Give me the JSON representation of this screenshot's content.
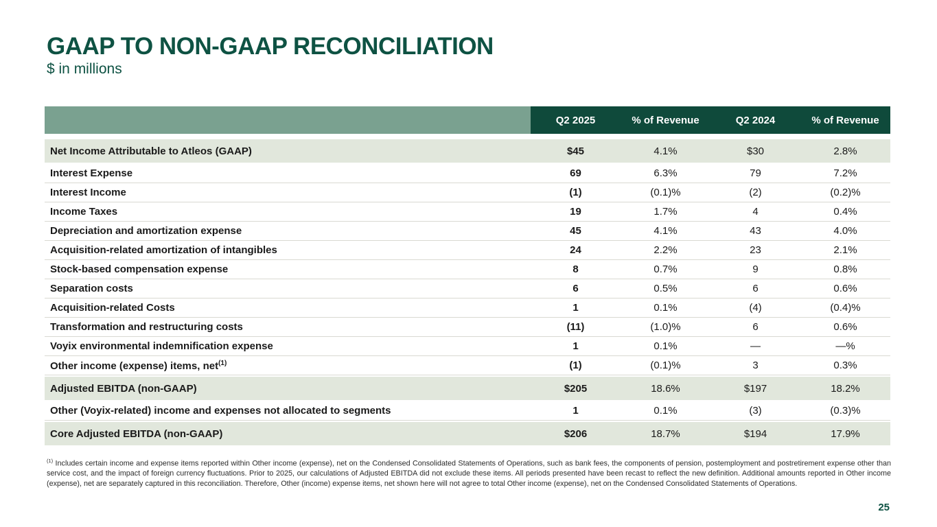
{
  "slide": {
    "title": "GAAP TO NON-GAAP RECONCILIATION",
    "subtitle": "$ in millions",
    "page_number": "25"
  },
  "colors": {
    "title_green": "#0E5243",
    "header_dark_green": "#0F4A3B",
    "header_sage_green": "#7AA190",
    "row_highlight_sage": "#E1E7DC",
    "body_text": "#1A1A1A"
  },
  "table": {
    "columns": [
      "Q2 2025",
      "% of Revenue",
      "Q2 2024",
      "% of Revenue"
    ],
    "rows": [
      {
        "label": "Net Income Attributable to Atleos (GAAP)",
        "values": [
          "$45",
          "4.1%",
          "$30",
          "2.8%"
        ],
        "highlight": true
      },
      {
        "label": "Interest Expense",
        "values": [
          "69",
          "6.3%",
          "79",
          "7.2%"
        ],
        "highlight": false
      },
      {
        "label": "Interest Income",
        "values": [
          "(1)",
          "(0.1)%",
          "(2)",
          "(0.2)%"
        ],
        "highlight": false
      },
      {
        "label": "Income Taxes",
        "values": [
          "19",
          "1.7%",
          "4",
          "0.4%"
        ],
        "highlight": false
      },
      {
        "label": "Depreciation and amortization expense",
        "values": [
          "45",
          "4.1%",
          "43",
          "4.0%"
        ],
        "highlight": false
      },
      {
        "label": "Acquisition-related amortization of intangibles",
        "values": [
          "24",
          "2.2%",
          "23",
          "2.1%"
        ],
        "highlight": false
      },
      {
        "label": "Stock-based compensation expense",
        "values": [
          "8",
          "0.7%",
          "9",
          "0.8%"
        ],
        "highlight": false
      },
      {
        "label": "Separation costs",
        "values": [
          "6",
          "0.5%",
          "6",
          "0.6%"
        ],
        "highlight": false
      },
      {
        "label": "Acquisition-related Costs",
        "values": [
          "1",
          "0.1%",
          "(4)",
          "(0.4)%"
        ],
        "highlight": false
      },
      {
        "label": "Transformation and restructuring costs",
        "values": [
          "(11)",
          "(1.0)%",
          "6",
          "0.6%"
        ],
        "highlight": false
      },
      {
        "label": "Voyix environmental indemnification expense",
        "values": [
          "1",
          "0.1%",
          "—",
          "—%"
        ],
        "highlight": false
      },
      {
        "label": "Other income (expense) items, net",
        "label_superscript": "(1)",
        "values": [
          "(1)",
          "(0.1)%",
          "3",
          "0.3%"
        ],
        "highlight": false
      },
      {
        "label": "Adjusted EBITDA (non-GAAP)",
        "values": [
          "$205",
          "18.6%",
          "$197",
          "18.2%"
        ],
        "highlight": true
      },
      {
        "label": "Other (Voyix-related) income and expenses not allocated to segments",
        "values": [
          "1",
          "0.1%",
          "(3)",
          "(0.3)%"
        ],
        "highlight": false
      },
      {
        "label": "Core Adjusted EBITDA (non-GAAP)",
        "values": [
          "$206",
          "18.7%",
          "$194",
          "17.9%"
        ],
        "highlight": true
      }
    ]
  },
  "footnote": {
    "marker": "(1)",
    "text": "Includes certain income and expense items reported within Other income (expense), net on the Condensed Consolidated Statements of Operations, such as bank fees, the components of pension, postemployment and postretirement expense other than service cost, and the impact of foreign currency fluctuations. Prior to 2025, our calculations of Adjusted EBITDA did not exclude these items. All periods presented have been recast to reflect the new definition. Additional amounts reported in Other income (expense), net are separately captured in this reconciliation. Therefore, Other (income) expense items, net shown here will not agree to total Other income (expense), net on the Condensed Consolidated Statements of Operations."
  }
}
